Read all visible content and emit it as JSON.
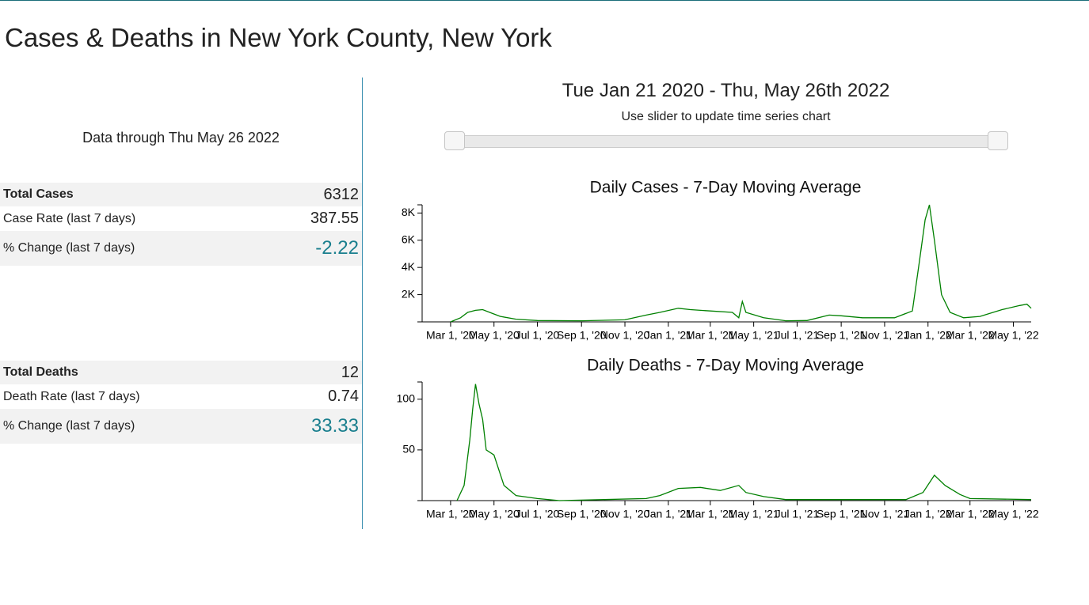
{
  "title": "Cases & Deaths in New York County, New York",
  "data_through": "Data through Thu May 26 2022",
  "cases_table": {
    "rows": [
      [
        "Total Cases",
        6312
      ],
      [
        "Case Rate (last 7 days)",
        387.55
      ],
      [
        "% Change (last 7 days)",
        -2.22
      ]
    ]
  },
  "deaths_table": {
    "rows": [
      [
        "Total Deaths",
        12
      ],
      [
        "Death Rate (last 7 days)",
        0.74
      ],
      [
        "% Change (last 7 days)",
        33.33
      ]
    ]
  },
  "range_title": "Tue Jan 21 2020 - Thu, May 26th 2022",
  "slider_hint": "Use slider to update time series chart",
  "chart_data": [
    {
      "type": "line",
      "title": "Daily Cases - 7-Day Moving Average",
      "color": "#008000",
      "x": [
        "2020-03-01",
        "2020-03-15",
        "2020-03-25",
        "2020-04-05",
        "2020-04-15",
        "2020-04-25",
        "2020-05-10",
        "2020-06-01",
        "2020-07-01",
        "2020-09-01",
        "2020-11-01",
        "2020-12-01",
        "2020-12-20",
        "2021-01-15",
        "2021-02-01",
        "2021-03-01",
        "2021-04-01",
        "2021-04-10",
        "2021-04-15",
        "2021-04-20",
        "2021-05-15",
        "2021-06-15",
        "2021-07-15",
        "2021-08-15",
        "2021-09-01",
        "2021-10-01",
        "2021-11-15",
        "2021-12-10",
        "2021-12-20",
        "2021-12-28",
        "2022-01-03",
        "2022-01-10",
        "2022-01-20",
        "2022-02-01",
        "2022-02-20",
        "2022-03-15",
        "2022-04-15",
        "2022-05-10",
        "2022-05-20",
        "2022-05-26"
      ],
      "values": [
        0,
        300,
        700,
        850,
        900,
        700,
        400,
        200,
        100,
        80,
        150,
        500,
        700,
        1000,
        900,
        800,
        700,
        300,
        1500,
        700,
        300,
        80,
        100,
        500,
        450,
        300,
        300,
        800,
        4500,
        7500,
        8600,
        6000,
        2000,
        700,
        300,
        400,
        900,
        1200,
        1300,
        1000
      ],
      "xlim": [
        "2020-01-21",
        "2022-05-26"
      ],
      "xticks": [
        {
          "value": "2020-03-01",
          "label": "Mar 1, '20"
        },
        {
          "value": "2020-05-01",
          "label": "May 1, '20"
        },
        {
          "value": "2020-07-01",
          "label": "Jul 1, '20"
        },
        {
          "value": "2020-09-01",
          "label": "Sep 1, '20"
        },
        {
          "value": "2020-11-01",
          "label": "Nov 1, '20"
        },
        {
          "value": "2021-01-01",
          "label": "Jan 1, '21"
        },
        {
          "value": "2021-03-01",
          "label": "Mar 1, '21"
        },
        {
          "value": "2021-05-01",
          "label": "May 1, '21"
        },
        {
          "value": "2021-07-01",
          "label": "Jul 1, '21"
        },
        {
          "value": "2021-09-01",
          "label": "Sep 1, '21"
        },
        {
          "value": "2021-11-01",
          "label": "Nov 1, '21"
        },
        {
          "value": "2022-01-01",
          "label": "Jan 1, '22"
        },
        {
          "value": "2022-03-01",
          "label": "Mar 1, '22"
        },
        {
          "value": "2022-05-01",
          "label": "May 1, '22"
        }
      ],
      "ylim": [
        0,
        8600
      ],
      "yticks": [
        {
          "value": 2000,
          "label": "2K"
        },
        {
          "value": 4000,
          "label": "4K"
        },
        {
          "value": 6000,
          "label": "6K"
        },
        {
          "value": 8000,
          "label": "8K"
        }
      ]
    },
    {
      "type": "line",
      "title": "Daily Deaths - 7-Day Moving Average",
      "color": "#008000",
      "x": [
        "2020-03-10",
        "2020-03-20",
        "2020-03-28",
        "2020-04-01",
        "2020-04-05",
        "2020-04-10",
        "2020-04-15",
        "2020-04-20",
        "2020-05-01",
        "2020-05-15",
        "2020-06-01",
        "2020-07-01",
        "2020-08-01",
        "2020-12-01",
        "2020-12-20",
        "2021-01-15",
        "2021-02-15",
        "2021-03-15",
        "2021-04-10",
        "2021-04-20",
        "2021-05-15",
        "2021-06-15",
        "2021-12-01",
        "2021-12-25",
        "2022-01-10",
        "2022-01-25",
        "2022-02-15",
        "2022-03-01",
        "2022-05-26"
      ],
      "values": [
        0,
        15,
        60,
        90,
        115,
        95,
        80,
        50,
        45,
        15,
        5,
        2,
        0,
        2,
        5,
        12,
        13,
        10,
        15,
        8,
        4,
        1,
        1,
        8,
        25,
        15,
        6,
        2,
        1
      ],
      "xlim": [
        "2020-01-21",
        "2022-05-26"
      ],
      "xticks": [
        {
          "value": "2020-03-01",
          "label": "Mar 1, '20"
        },
        {
          "value": "2020-05-01",
          "label": "May 1, '20"
        },
        {
          "value": "2020-07-01",
          "label": "Jul 1, '20"
        },
        {
          "value": "2020-09-01",
          "label": "Sep 1, '20"
        },
        {
          "value": "2020-11-01",
          "label": "Nov 1, '20"
        },
        {
          "value": "2021-01-01",
          "label": "Jan 1, '21"
        },
        {
          "value": "2021-03-01",
          "label": "Mar 1, '21"
        },
        {
          "value": "2021-05-01",
          "label": "May 1, '21"
        },
        {
          "value": "2021-07-01",
          "label": "Jul 1, '21"
        },
        {
          "value": "2021-09-01",
          "label": "Sep 1, '21"
        },
        {
          "value": "2021-11-01",
          "label": "Nov 1, '21"
        },
        {
          "value": "2022-01-01",
          "label": "Jan 1, '22"
        },
        {
          "value": "2022-03-01",
          "label": "Mar 1, '22"
        },
        {
          "value": "2022-05-01",
          "label": "May 1, '22"
        }
      ],
      "ylim": [
        0,
        117
      ],
      "yticks": [
        50,
        100
      ]
    }
  ]
}
